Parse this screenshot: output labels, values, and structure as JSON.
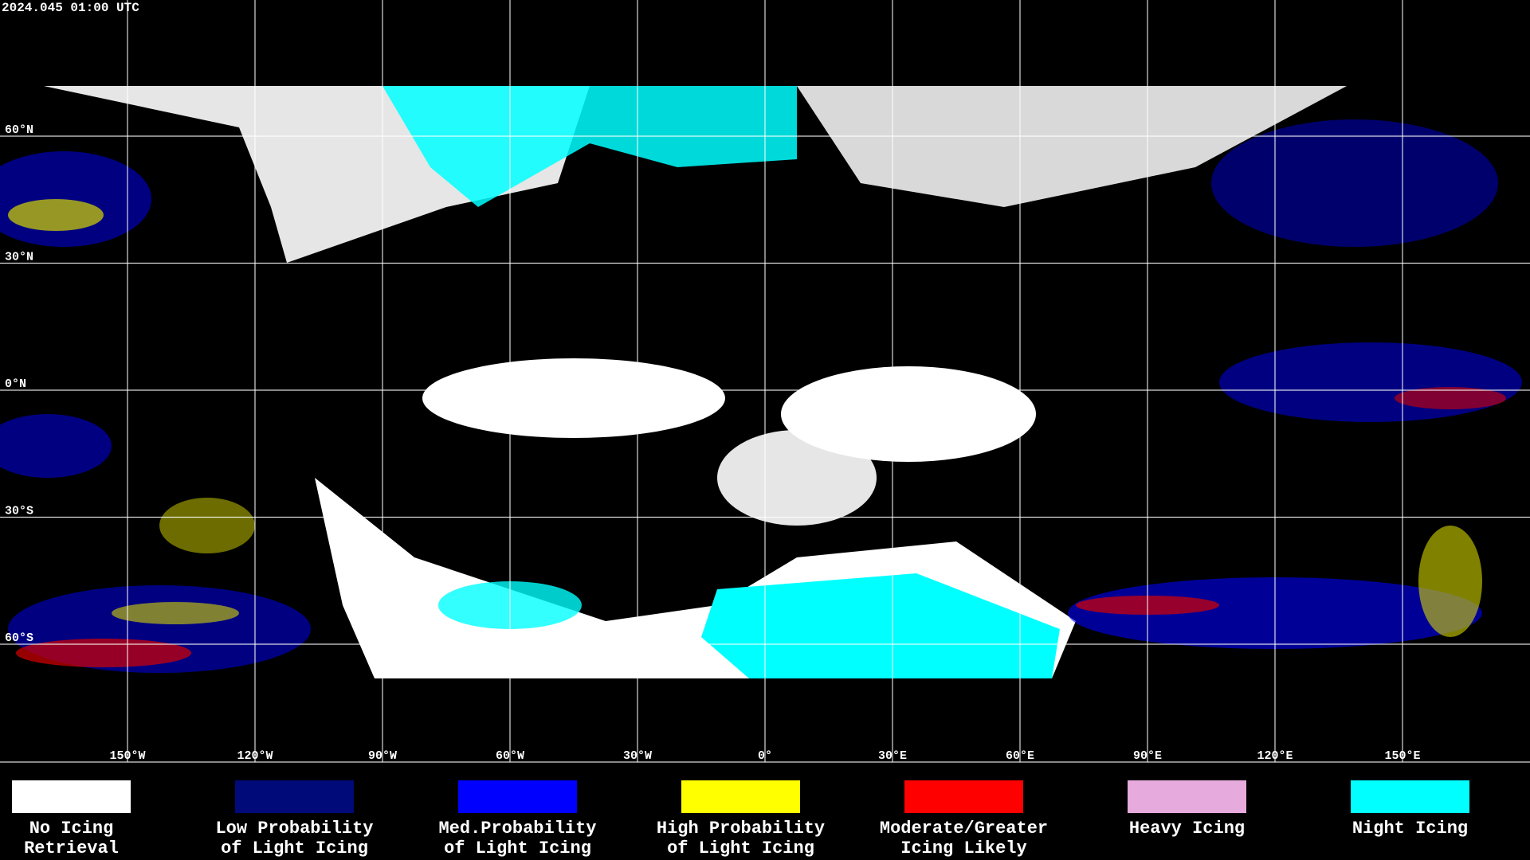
{
  "header": {
    "title": "2024.045 01:00 UTC"
  },
  "map": {
    "lat_labels": [
      "60°N",
      "30°N",
      "0°N",
      "30°S",
      "60°S"
    ],
    "lon_labels": [
      "150°W",
      "120°W",
      "90°W",
      "60°W",
      "30°W",
      "0°",
      "30°E",
      "60°E",
      "90°E",
      "120°E",
      "150°E"
    ]
  },
  "legend": {
    "items": [
      {
        "lines": [
          "No Icing",
          "Retrieval"
        ],
        "color": "#ffffff"
      },
      {
        "lines": [
          "Low Probability",
          "of Light Icing"
        ],
        "color": "#000a78"
      },
      {
        "lines": [
          "Med.Probability",
          "of Light Icing"
        ],
        "color": "#0000ff"
      },
      {
        "lines": [
          "High Probability",
          "of Light Icing"
        ],
        "color": "#ffff00"
      },
      {
        "lines": [
          "Moderate/Greater",
          "Icing Likely"
        ],
        "color": "#ff0000"
      },
      {
        "lines": [
          "Heavy Icing"
        ],
        "color": "#e6aadc"
      },
      {
        "lines": [
          "Night Icing"
        ],
        "color": "#00ffff"
      }
    ]
  }
}
